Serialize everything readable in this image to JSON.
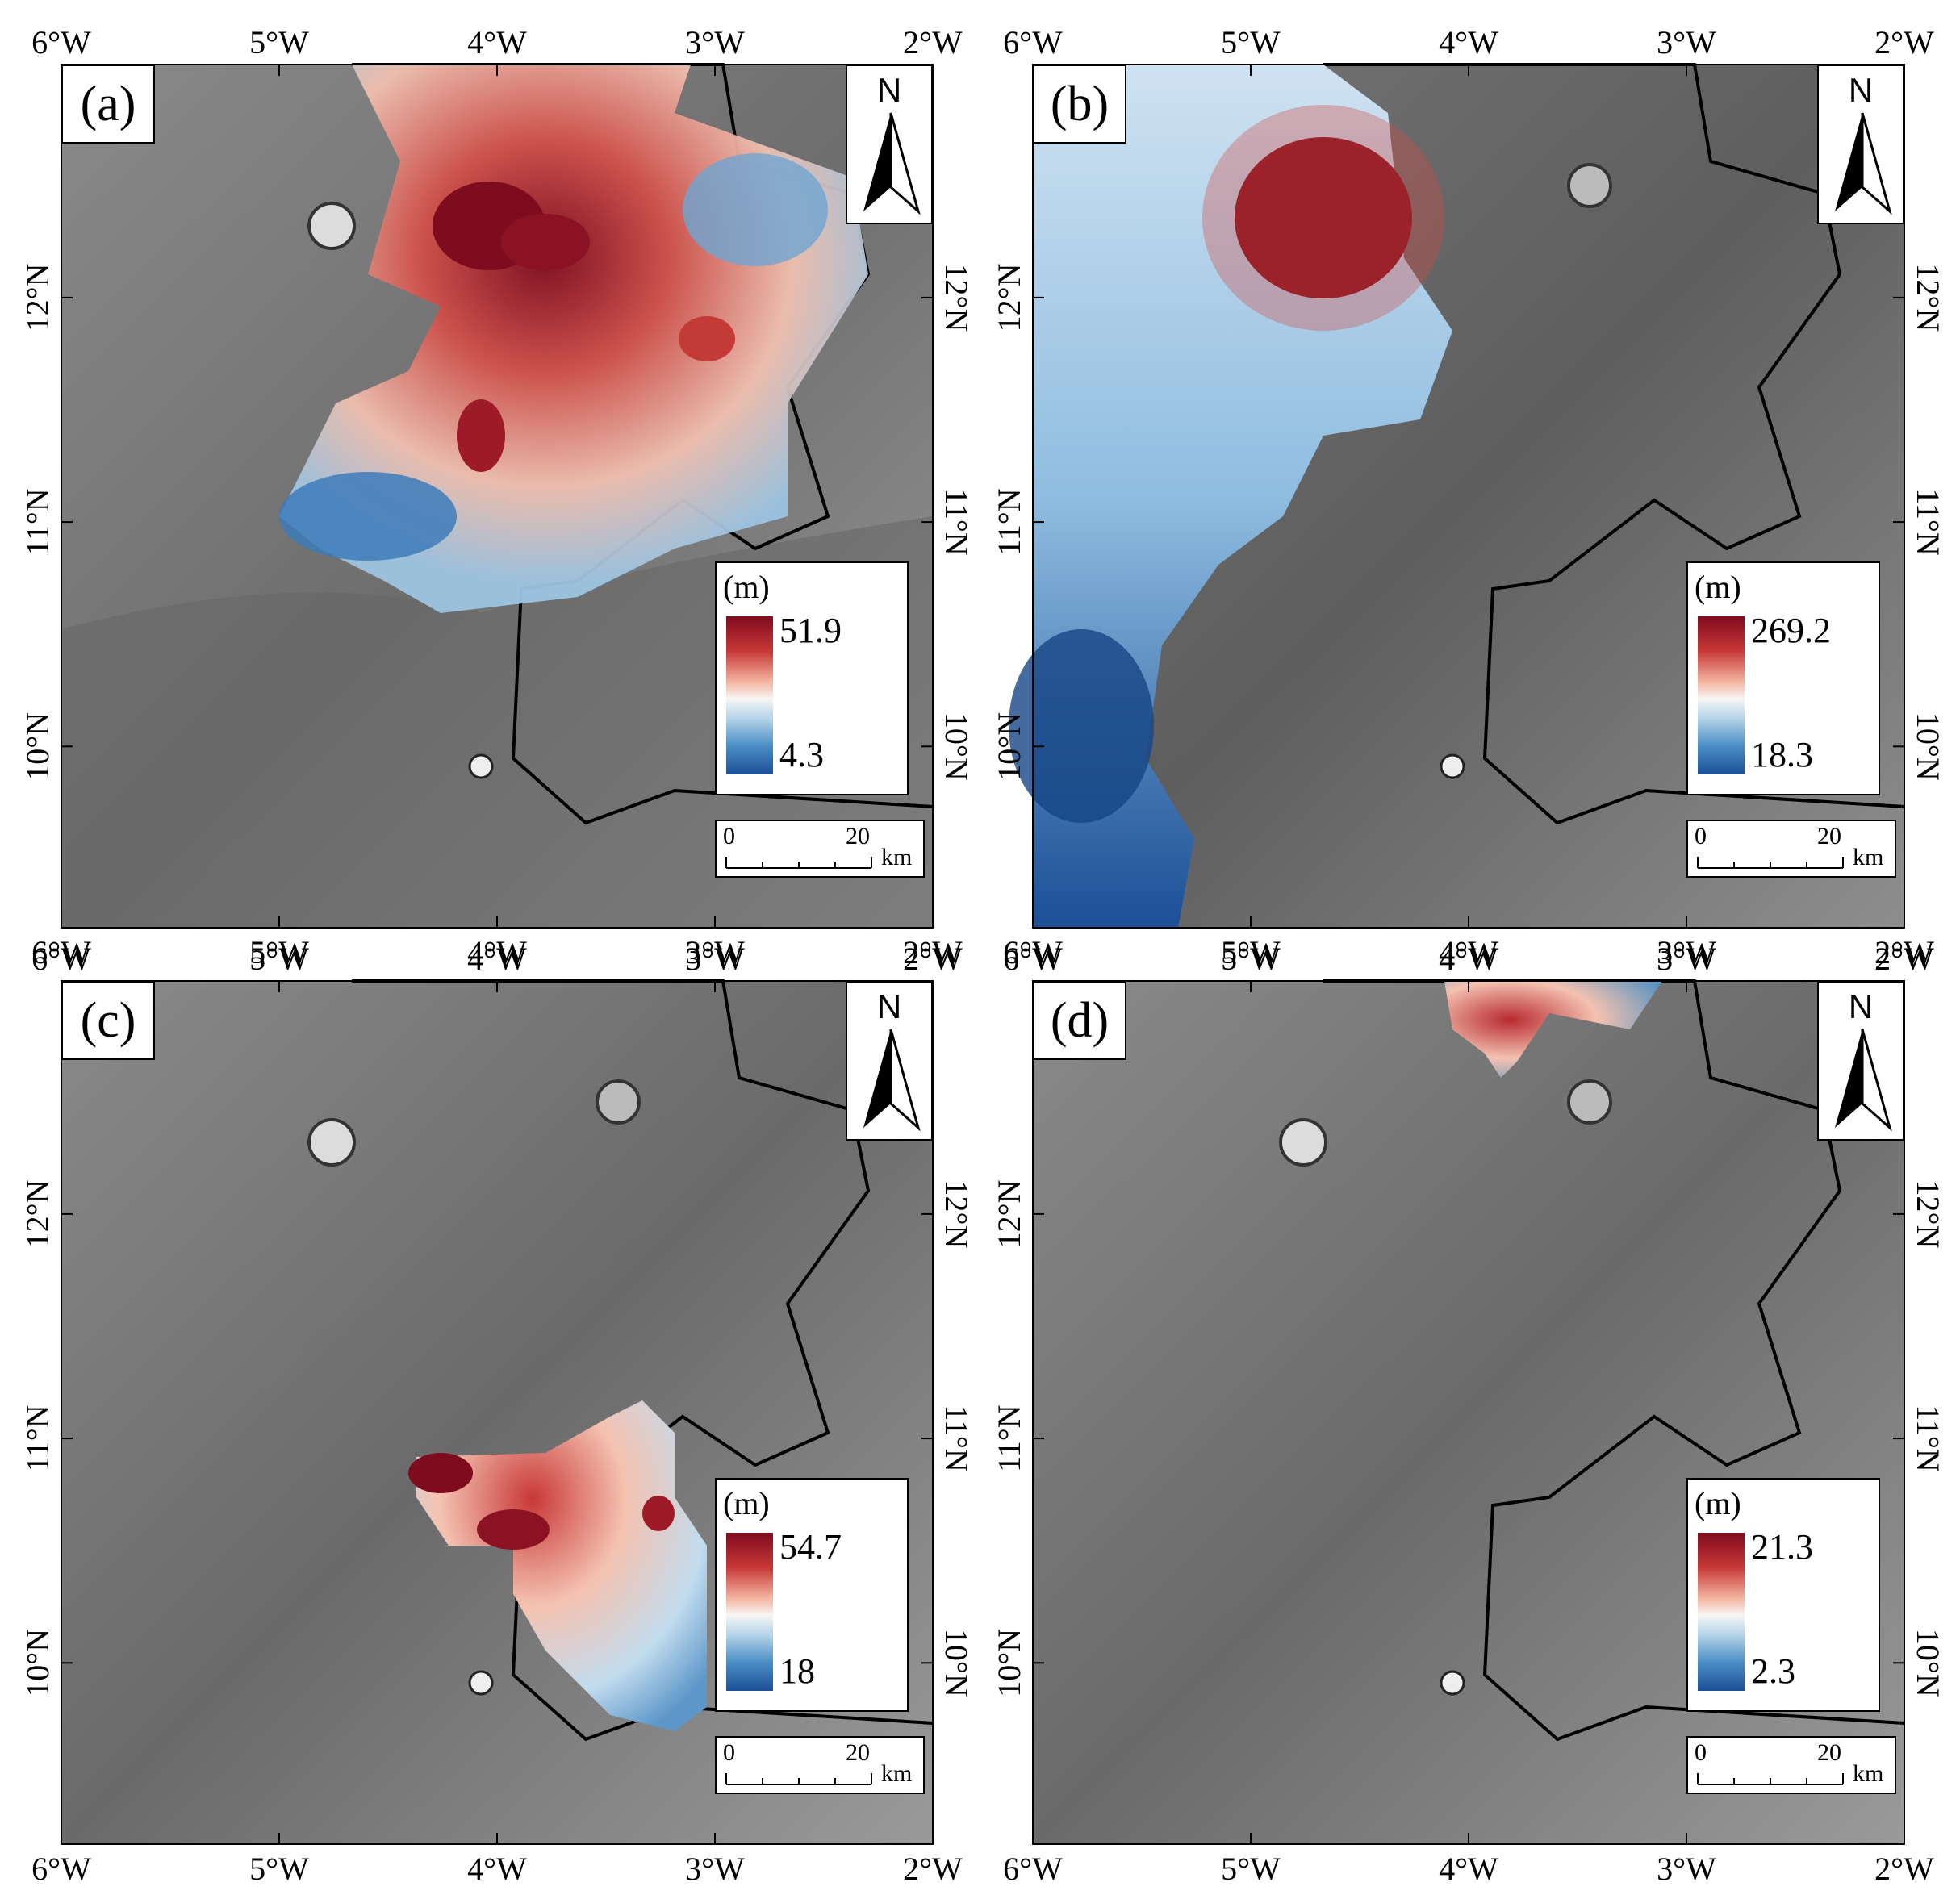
{
  "axes": {
    "x_ticks": [
      "6°W",
      "5°W",
      "4°W",
      "3°W",
      "2°W"
    ],
    "y_ticks": [
      "12°N",
      "11°N",
      "10°N"
    ]
  },
  "north_arrow": {
    "letter": "N",
    "icon": "north-arrow-icon"
  },
  "scale_bar": {
    "zero": "0",
    "twenty": "20",
    "unit": "km"
  },
  "colormap": {
    "high": "#7f0b1e",
    "mid": "#f7f5f3",
    "low": "#1b4f97"
  },
  "panels": [
    {
      "label": "(a)",
      "unit": "(m)",
      "max": "51.9",
      "min": "4.3"
    },
    {
      "label": "(b)",
      "unit": "(m)",
      "max": "269.2",
      "min": "18.3"
    },
    {
      "label": "(c)",
      "unit": "(m)",
      "max": "54.7",
      "min": "18"
    },
    {
      "label": "(d)",
      "unit": "(m)",
      "max": "21.3",
      "min": "2.3"
    }
  ]
}
